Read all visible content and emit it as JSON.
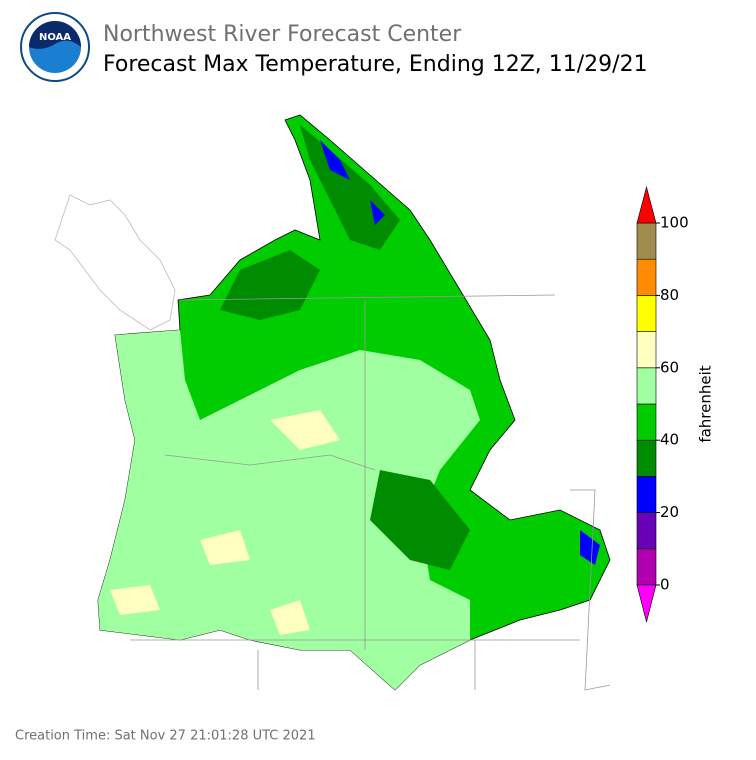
{
  "header": {
    "logo_text": "NOAA",
    "title": "Northwest River Forecast Center",
    "subtitle": "Forecast Max Temperature, Ending 12Z, 11/29/21"
  },
  "colorbar": {
    "label": "fahrenheit",
    "bounds": [
      0,
      10,
      20,
      30,
      40,
      50,
      60,
      70,
      80,
      90,
      100
    ],
    "colors": [
      "#b000b0",
      "#6a00b8",
      "#0000ff",
      "#008c00",
      "#00cc00",
      "#a0ffa0",
      "#ffffc0",
      "#ffff00",
      "#ff8c00",
      "#a08c50"
    ],
    "under_color": "#ff00ff",
    "over_color": "#ff0000",
    "ticks": [
      0,
      20,
      40,
      60,
      80,
      100
    ]
  },
  "footer": {
    "creation_time": "Creation Time: Sat Nov 27 21:01:28 UTC 2021"
  }
}
